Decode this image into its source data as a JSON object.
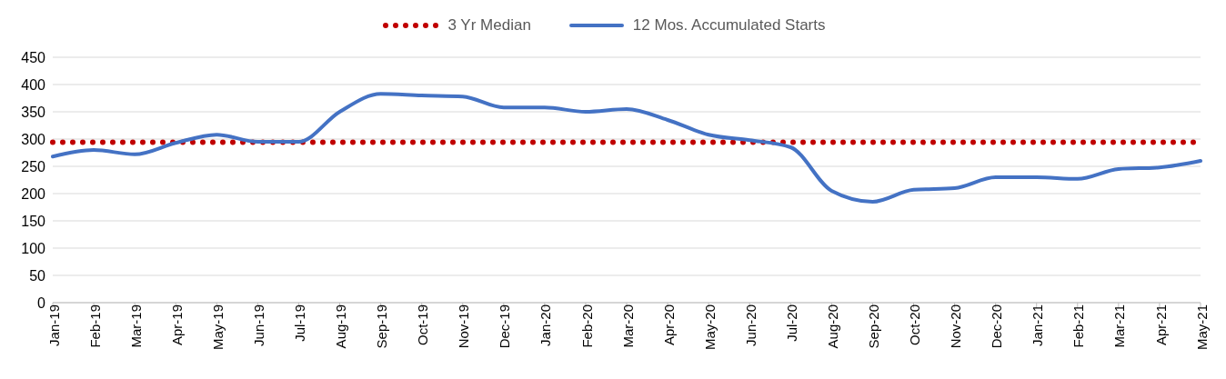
{
  "chart_data": {
    "type": "line",
    "categories": [
      "Jan-19",
      "Feb-19",
      "Mar-19",
      "Apr-19",
      "May-19",
      "Jun-19",
      "Jul-19",
      "Aug-19",
      "Sep-19",
      "Oct-19",
      "Nov-19",
      "Dec-19",
      "Jan-20",
      "Feb-20",
      "Mar-20",
      "Apr-20",
      "May-20",
      "Jun-20",
      "Jul-20",
      "Aug-20",
      "Sep-20",
      "Oct-20",
      "Nov-20",
      "Dec-20",
      "Jan-21",
      "Feb-21",
      "Mar-21",
      "Apr-21",
      "May-21"
    ],
    "series": [
      {
        "name": "3 Yr Median",
        "color": "#c00000",
        "line_style": "dotted",
        "values": [
          294,
          294,
          294,
          294,
          294,
          294,
          294,
          294,
          294,
          294,
          294,
          294,
          294,
          294,
          294,
          294,
          294,
          294,
          294,
          294,
          294,
          294,
          294,
          294,
          294,
          294,
          294,
          294,
          294
        ]
      },
      {
        "name": "12 Mos. Accumulated Starts",
        "color": "#4472c4",
        "line_style": "solid",
        "values": [
          268,
          280,
          272,
          293,
          308,
          295,
          295,
          350,
          383,
          380,
          378,
          358,
          358,
          350,
          355,
          335,
          308,
          298,
          285,
          205,
          185,
          207,
          210,
          230,
          230,
          227,
          245,
          248,
          260
        ]
      }
    ],
    "ylim": [
      0,
      450
    ],
    "yticks": [
      0,
      50,
      100,
      150,
      200,
      250,
      300,
      350,
      400,
      450
    ],
    "grid": "y",
    "legend": "top",
    "marker": "none"
  }
}
